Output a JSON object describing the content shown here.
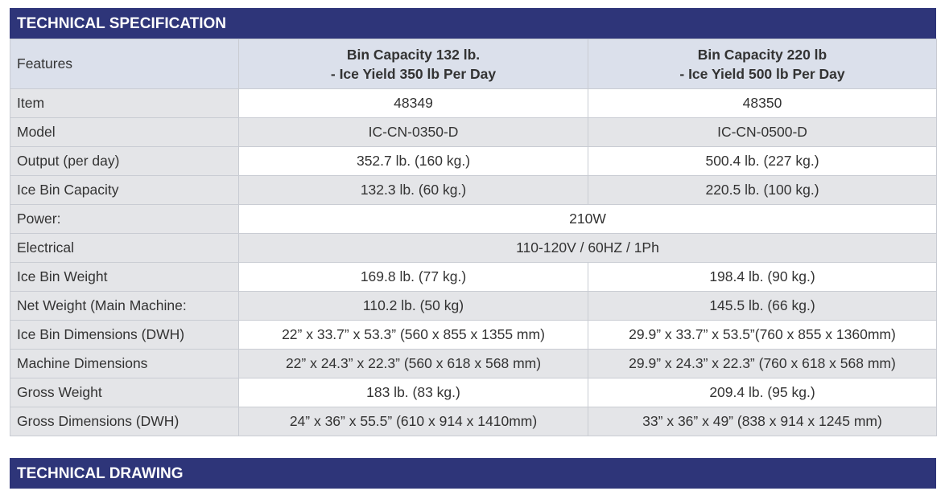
{
  "header": {
    "title": "TECHNICAL SPECIFICATION"
  },
  "table": {
    "columns": [
      [
        "Features"
      ],
      [
        "Bin Capacity 132 lb.",
        "- Ice Yield 350 lb Per Day"
      ],
      [
        "Bin Capacity 220 lb",
        "- Ice Yield 500 lb Per Day"
      ]
    ],
    "rows": [
      [
        "Item",
        "48349",
        "48350"
      ],
      [
        "Model",
        "IC-CN-0350-D",
        "IC-CN-0500-D"
      ],
      [
        "Output  (per day)",
        "352.7 lb. (160 kg.)",
        "500.4 lb. (227 kg.)"
      ],
      [
        "Ice Bin Capacity",
        "132.3 lb. (60 kg.)",
        "220.5 lb. (100 kg.)"
      ],
      [
        "Power:",
        "210W"
      ],
      [
        "Electrical",
        "110-120V / 60HZ / 1Ph"
      ],
      [
        "Ice Bin Weight",
        "169.8 lb. (77 kg.)",
        "198.4 lb. (90 kg.)"
      ],
      [
        "Net Weight (Main Machine:",
        "110.2 lb. (50 kg)",
        "145.5 lb. (66 kg.)"
      ],
      [
        "Ice Bin Dimensions (DWH)",
        "22” x 33.7” x 53.3” (560 x 855 x 1355 mm)",
        "29.9” x 33.7” x 53.5”(760 x 855 x 1360mm)"
      ],
      [
        "Machine Dimensions",
        "22” x 24.3” x 22.3” (560 x 618 x 568 mm)",
        "29.9” x 24.3” x 22.3” (760 x 618 x 568 mm)"
      ],
      [
        "Gross Weight",
        "183 lb.  (83 kg.)",
        "209.4 lb. (95 kg.)"
      ],
      [
        "Gross Dimensions (DWH)",
        "24” x 36” x 55.5” (610 x 914 x 1410mm)",
        "33” x 36” x 49” (838 x 914 x 1245 mm)"
      ]
    ]
  },
  "footer": {
    "title": "TECHNICAL DRAWING"
  }
}
